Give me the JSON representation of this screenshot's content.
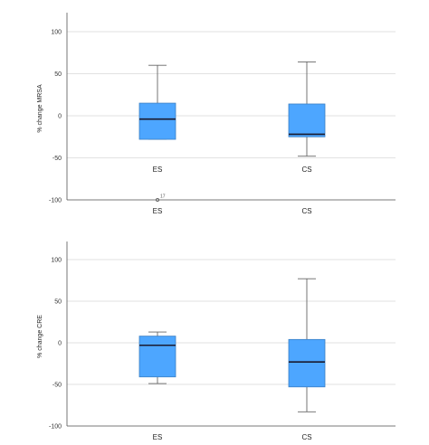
{
  "chart_data": [
    {
      "type": "boxplot",
      "ylabel": "% change MRSA",
      "ylim": [
        -100,
        100
      ],
      "yticks": [
        -100,
        -50,
        0,
        50,
        100
      ],
      "grid": true,
      "categories": [
        "ES",
        "CS"
      ],
      "inner_category_labels": [
        "ES",
        "CS"
      ],
      "boxes": [
        {
          "category": "ES",
          "min": -28,
          "q1": -28,
          "median": -4,
          "q3": 15,
          "max": 60,
          "outliers": [
            {
              "value": -100,
              "label": "17"
            }
          ]
        },
        {
          "category": "CS",
          "min": -48,
          "q1": -25,
          "median": -22,
          "q3": 14,
          "max": 64,
          "outliers": []
        }
      ],
      "color": "#4da6ff"
    },
    {
      "type": "boxplot",
      "ylabel": "% change CRE",
      "ylim": [
        -100,
        100
      ],
      "yticks": [
        -100,
        -50,
        0,
        50,
        100
      ],
      "grid": true,
      "categories": [
        "ES",
        "CS"
      ],
      "boxes": [
        {
          "category": "ES",
          "min": -49,
          "q1": -41,
          "median": -3,
          "q3": 8,
          "max": 13,
          "outliers": []
        },
        {
          "category": "CS",
          "min": -83,
          "q1": -53,
          "median": -23,
          "q3": 4,
          "max": 77,
          "outliers": []
        }
      ],
      "color": "#4da6ff"
    }
  ]
}
